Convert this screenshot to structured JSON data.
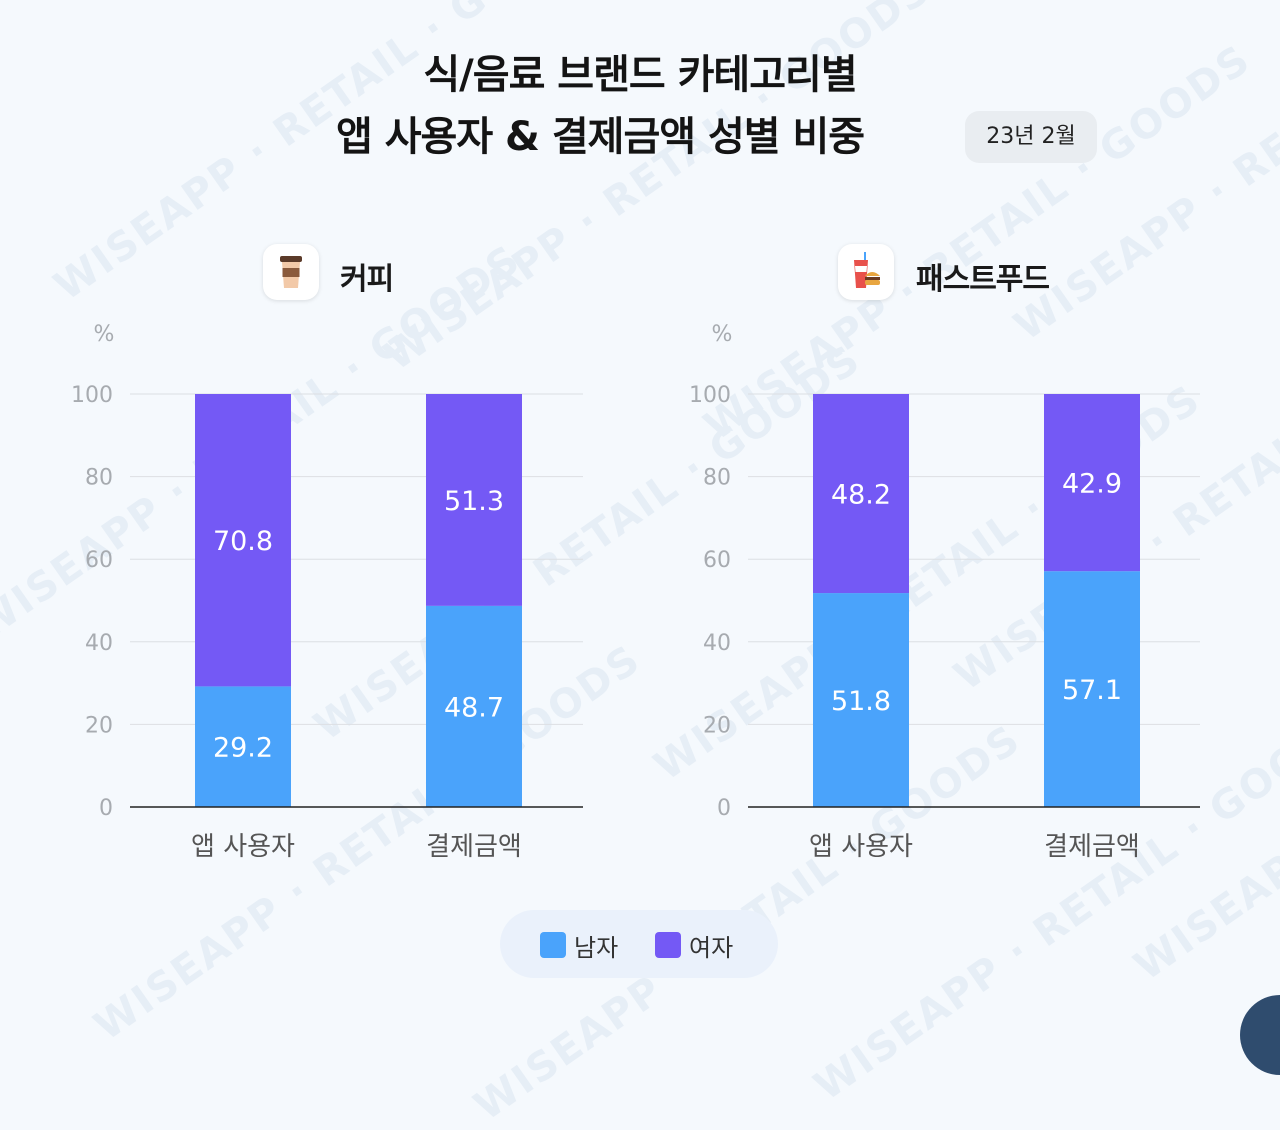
{
  "title": {
    "line1": "식/음료 브랜드 카테고리별",
    "line2": "앱 사용자 & 결제금액 성별 비중",
    "badge": "23년 2월"
  },
  "watermark_text": "WISEAPP · RETAIL · GOODS",
  "legend": [
    {
      "label": "남자",
      "color": "#4aa3fb"
    },
    {
      "label": "여자",
      "color": "#7459f5"
    }
  ],
  "colors": {
    "male": "#4aa3fb",
    "female": "#7459f5",
    "grid": "#dcdfe3",
    "axis": "#222222",
    "tick": "#a7abb0"
  },
  "chart_data": [
    {
      "type": "bar",
      "stacked": true,
      "title": "커피",
      "icon": "coffee-cup-icon",
      "ylabel": "%",
      "ylim": [
        0,
        100
      ],
      "yticks": [
        "0",
        "20",
        "40",
        "60",
        "80",
        "100"
      ],
      "grid": true,
      "categories": [
        "앱 사용자",
        "결제금액"
      ],
      "series": [
        {
          "name": "남자",
          "values": [
            29.2,
            48.7
          ],
          "labels": [
            "29.2",
            "48.7"
          ]
        },
        {
          "name": "여자",
          "values": [
            70.8,
            51.3
          ],
          "labels": [
            "70.8",
            "51.3"
          ]
        }
      ]
    },
    {
      "type": "bar",
      "stacked": true,
      "title": "패스트푸드",
      "icon": "burger-drink-icon",
      "ylabel": "%",
      "ylim": [
        0,
        100
      ],
      "yticks": [
        "0",
        "20",
        "40",
        "60",
        "80",
        "100"
      ],
      "grid": true,
      "categories": [
        "앱 사용자",
        "결제금액"
      ],
      "series": [
        {
          "name": "남자",
          "values": [
            51.8,
            57.1
          ],
          "labels": [
            "51.8",
            "57.1"
          ]
        },
        {
          "name": "여자",
          "values": [
            48.2,
            42.9
          ],
          "labels": [
            "48.2",
            "42.9"
          ]
        }
      ]
    }
  ]
}
